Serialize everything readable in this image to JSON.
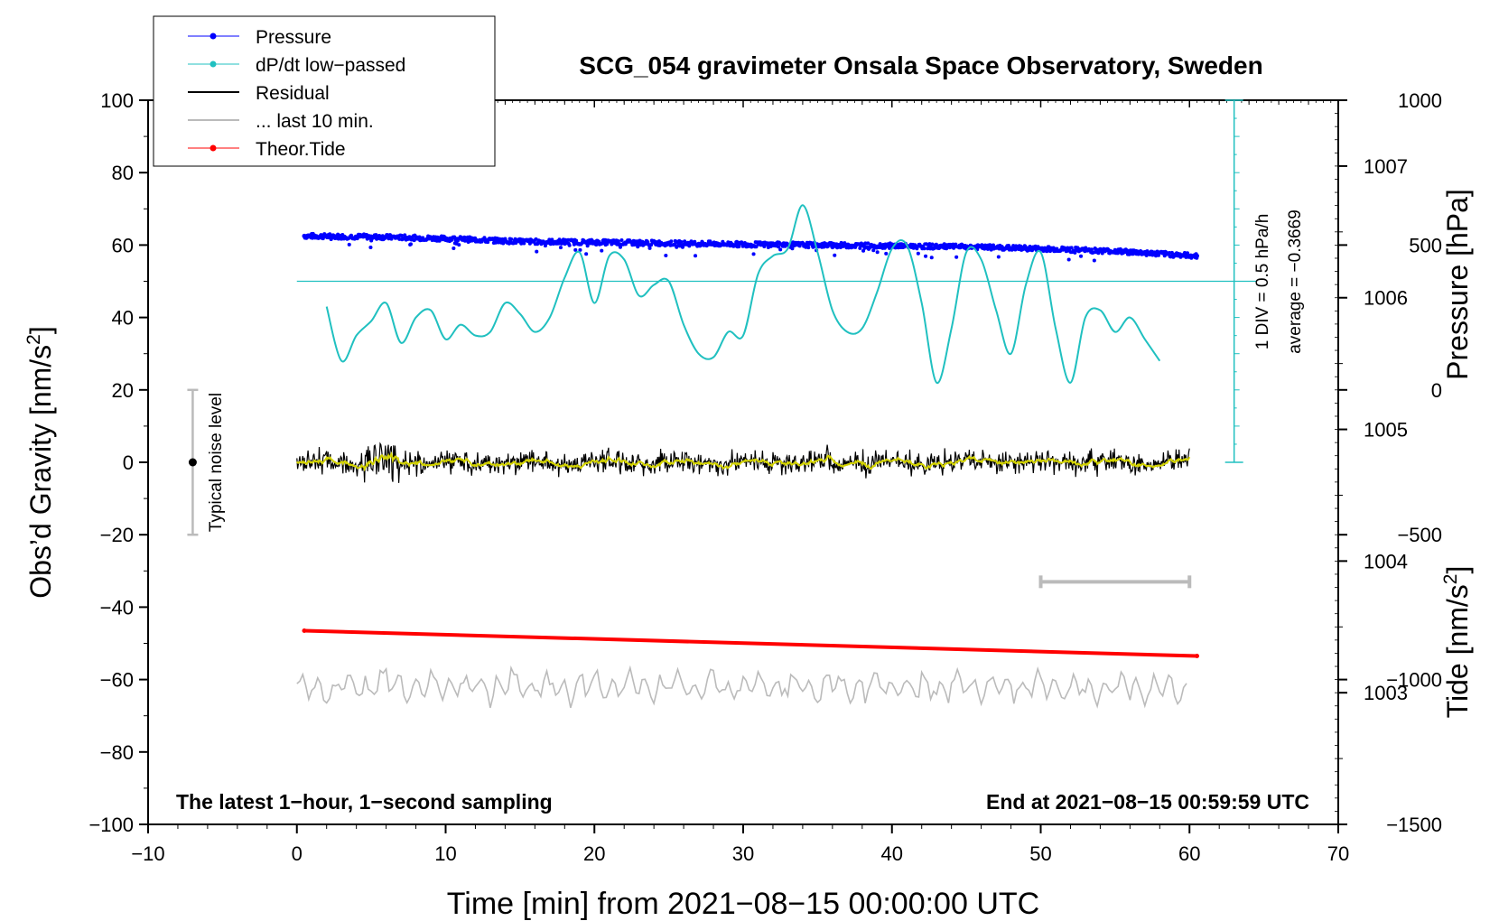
{
  "chart_data": {
    "type": "line",
    "title": "SCG_054 gravimeter Onsala Space Observatory, Sweden",
    "xlabel": "Time [min] from 2021−08−15 00:00:00 UTC",
    "ylabel_left": "Obs’d Gravity [nm/s",
    "ylabel_left_sup": "2",
    "ylabel_left_end": "]",
    "ylabel_right_pressure": "Pressure [hPa]",
    "ylabel_right_tide": "Tide [nm/s",
    "ylabel_right_tide_sup": "2",
    "ylabel_right_tide_end": "]",
    "xlim": [
      -10,
      70
    ],
    "ylim": [
      -100,
      100
    ],
    "x_ticks": [
      "−10",
      "0",
      "10",
      "20",
      "30",
      "40",
      "50",
      "60",
      "70"
    ],
    "y_ticks": [
      "−100",
      "−80",
      "−60",
      "−40",
      "−20",
      "0",
      "20",
      "40",
      "60",
      "80",
      "100"
    ],
    "pressure_axis": {
      "range_hPa": [
        1002,
        1007.5
      ],
      "ticks": [
        "1003",
        "1004",
        "1005",
        "1006",
        "1007"
      ]
    },
    "tide_axis": {
      "range": [
        -1500,
        1000
      ],
      "ticks": [
        "−1500",
        "−1000",
        "−500",
        "0",
        "500",
        "1000"
      ]
    },
    "legend": [
      {
        "label": "Pressure",
        "color": "#0000ff",
        "marker": true
      },
      {
        "label": "dP/dt low−passed",
        "color": "#20c0c0",
        "marker": true
      },
      {
        "label": "Residual",
        "color": "#000000",
        "marker": false
      },
      {
        "label": "... last 10 min.",
        "color": "#bbbbbb",
        "marker": false
      },
      {
        "label": "Theor.Tide",
        "color": "#ff0000",
        "marker": true
      }
    ],
    "series": [
      {
        "name": "Pressure",
        "color": "#0000ff",
        "x": [
          0.5,
          5,
          10,
          15,
          20,
          25,
          30,
          35,
          40,
          45,
          50,
          55,
          60.5
        ],
        "values": [
          62.5,
          62.3,
          61.8,
          61.0,
          60.8,
          60.5,
          60.2,
          60.0,
          59.8,
          59.5,
          59.0,
          58.3,
          57.0
        ]
      },
      {
        "name": "dP/dt low-passed",
        "color": "#20c0c0",
        "x": [
          2,
          3,
          4,
          5,
          6,
          7,
          8,
          9,
          10,
          11,
          12,
          13,
          14,
          15,
          16,
          17,
          18,
          19,
          20,
          21,
          22,
          23,
          24,
          25,
          26,
          27,
          28,
          29,
          30,
          31,
          32,
          33,
          34,
          35,
          36,
          37,
          38,
          39,
          40,
          41,
          42,
          43,
          44,
          45,
          46,
          47,
          48,
          49,
          50,
          51,
          52,
          53,
          54,
          55,
          56,
          57,
          58
        ],
        "values": [
          43,
          28,
          35,
          39,
          44,
          33,
          40,
          42,
          34,
          38,
          35,
          36,
          44,
          41,
          36,
          40,
          51,
          58,
          44,
          57,
          56,
          46,
          49,
          50,
          38,
          30,
          29,
          36,
          35,
          52,
          57,
          59,
          71,
          58,
          42,
          36,
          37,
          47,
          59,
          60,
          44,
          22,
          37,
          58,
          56,
          42,
          30,
          49,
          58,
          37,
          22,
          40,
          42,
          36,
          40,
          34,
          28
        ]
      },
      {
        "name": "Residual",
        "color": "#000000",
        "x": [
          0,
          5,
          10,
          15,
          20,
          25,
          30,
          35,
          40,
          45,
          50,
          55,
          60
        ],
        "values": [
          0,
          0,
          0,
          0,
          0,
          0,
          0,
          0,
          0,
          0,
          0,
          0,
          0
        ]
      },
      {
        "name": "... last 10 min.",
        "color": "#bbbbbb",
        "x": [
          0,
          10,
          20,
          30,
          40,
          50,
          60
        ],
        "values": [
          -62,
          -62,
          -62,
          -62,
          -62,
          -62,
          -62
        ]
      },
      {
        "name": "Theor.Tide",
        "color": "#ff0000",
        "x": [
          0.5,
          60.5
        ],
        "values": [
          -46.5,
          -53.5
        ]
      }
    ],
    "cyan_baseline": 50,
    "cyan_scale_labels": [
      "1 DIV = 0.5 hPa/h",
      "average = −0.3669"
    ],
    "noise_label": "Typical noise level",
    "noise_bar": {
      "x": -7,
      "low": -20,
      "high": 20,
      "center": 0
    },
    "last10_bar": {
      "from": 50,
      "to": 60,
      "y": -33
    },
    "footer_left": "The latest 1−hour, 1−second sampling",
    "footer_right": "End at 2021−08−15 00:59:59 UTC"
  }
}
